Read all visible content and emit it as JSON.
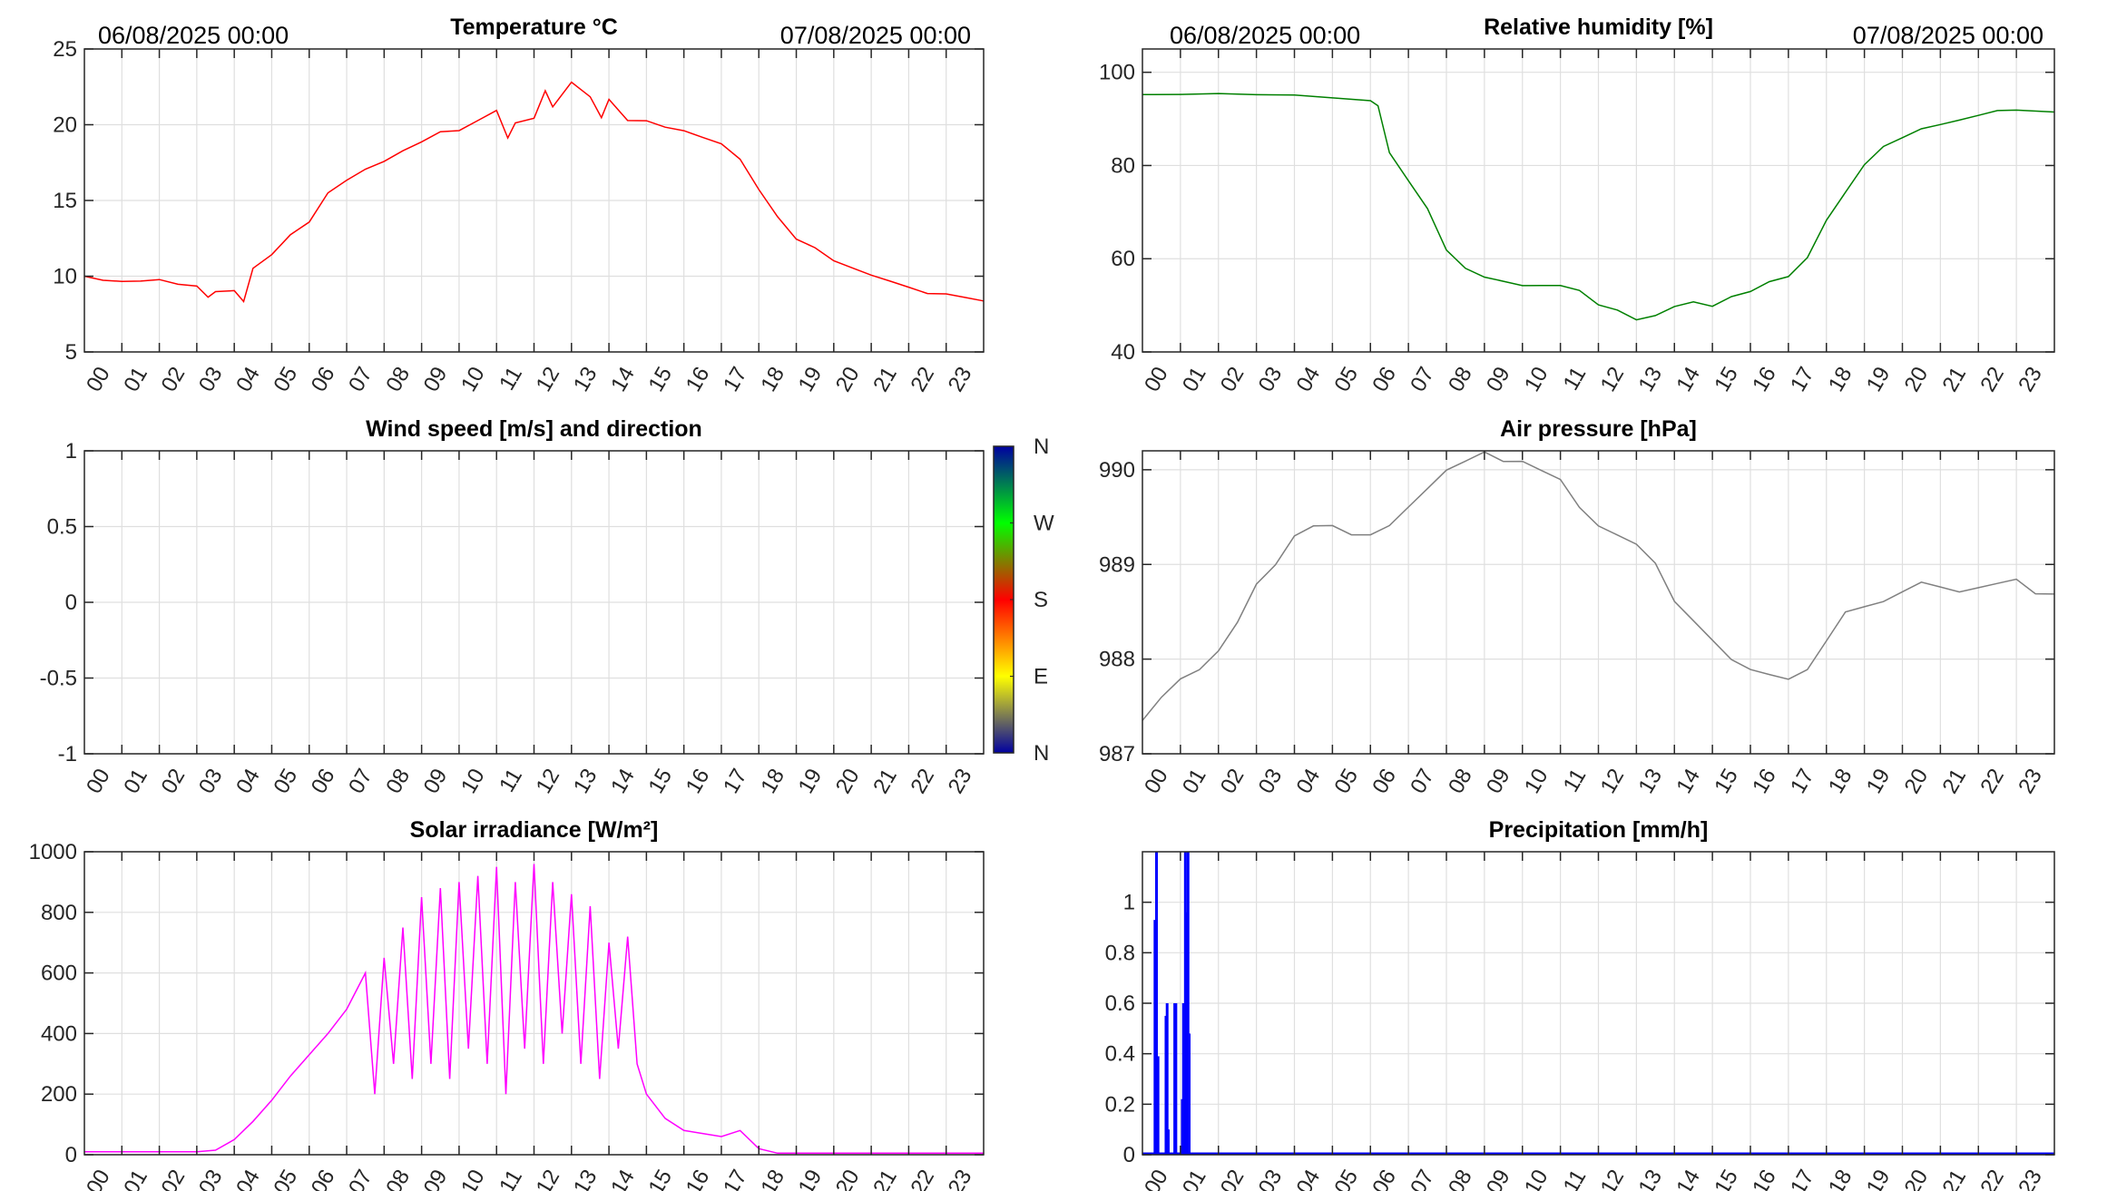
{
  "header": {
    "start_date": "06/08/2025 00:00",
    "end_date": "07/08/2025 00:00"
  },
  "hour_labels": [
    "00",
    "01",
    "02",
    "03",
    "04",
    "05",
    "06",
    "07",
    "08",
    "09",
    "10",
    "11",
    "12",
    "13",
    "14",
    "15",
    "16",
    "17",
    "18",
    "19",
    "20",
    "21",
    "22",
    "23"
  ],
  "chart_data": [
    {
      "id": "temperature",
      "type": "line",
      "title": "Temperature °C",
      "color": "#ff0000",
      "xlim": [
        0,
        24
      ],
      "ylim": [
        5,
        25
      ],
      "yticks": [
        5,
        10,
        15,
        20,
        25
      ],
      "grid": true,
      "x": [
        0,
        0.5,
        1,
        1.5,
        2,
        2.5,
        3,
        3.3,
        3.5,
        4,
        4.25,
        4.5,
        5,
        5.5,
        6,
        6.5,
        7,
        7.5,
        8,
        8.5,
        9,
        9.5,
        10,
        10.5,
        11,
        11.3,
        11.5,
        12,
        12.3,
        12.5,
        13,
        13.5,
        13.8,
        14,
        14.5,
        15,
        15.5,
        16,
        16.5,
        17,
        17.5,
        18,
        18.5,
        19,
        19.5,
        20,
        20.5,
        21,
        21.5,
        22,
        22.5,
        23,
        23.5,
        24
      ],
      "y": [
        10,
        9.7,
        9.6,
        9.6,
        9.7,
        9.4,
        9.3,
        8.6,
        9.0,
        9.1,
        8.4,
        10.6,
        11.5,
        12.8,
        13.6,
        15.5,
        16.3,
        17.0,
        17.5,
        18.2,
        18.8,
        19.5,
        19.6,
        20.3,
        21.0,
        19.2,
        20.2,
        20.5,
        22.3,
        21.2,
        22.8,
        21.8,
        20.4,
        21.6,
        20.2,
        20.2,
        19.8,
        19.6,
        19.2,
        18.8,
        17.8,
        15.8,
        14.0,
        12.5,
        11.9,
        11.0,
        10.5,
        10.0,
        9.6,
        9.2,
        8.8,
        8.8,
        8.6,
        8.4
      ]
    },
    {
      "id": "humidity",
      "type": "line",
      "title": "Relative humidity [%]",
      "color": "#008000",
      "xlim": [
        0,
        24
      ],
      "ylim": [
        40,
        105
      ],
      "yticks": [
        40,
        60,
        80,
        100
      ],
      "grid": true,
      "x": [
        0,
        1,
        2,
        3,
        4,
        5,
        6,
        6.2,
        6.5,
        7,
        7.5,
        8,
        8.5,
        9,
        9.5,
        10,
        10.5,
        11,
        11.5,
        12,
        12.5,
        13,
        13.5,
        14,
        14.5,
        15,
        15.5,
        16,
        16.5,
        17,
        17.5,
        18,
        18.5,
        19,
        19.5,
        20,
        20.5,
        21,
        21.5,
        22,
        22.5,
        23,
        24
      ],
      "y": [
        95,
        95,
        95.2,
        95,
        95,
        94.5,
        94,
        93,
        83,
        77,
        71,
        62,
        58,
        56,
        55,
        54,
        54,
        54,
        53,
        50,
        49,
        47,
        48,
        50,
        51,
        50,
        52,
        53,
        55,
        56,
        60,
        68,
        74,
        80,
        84,
        86,
        88,
        89,
        90,
        91,
        92,
        92,
        91.5
      ]
    },
    {
      "id": "wind",
      "type": "line",
      "title": "Wind speed [m/s] and direction",
      "xlim": [
        0,
        24
      ],
      "ylim": [
        -1,
        1
      ],
      "yticks": [
        -1,
        -0.5,
        0,
        0.5,
        1
      ],
      "grid": true,
      "x": [],
      "y": [],
      "colorbar": {
        "labels": [
          "N",
          "E",
          "S",
          "W",
          "N"
        ],
        "colors": [
          "#0000a0",
          "#ffff00",
          "#ff0000",
          "#00ff00",
          "#0000a0"
        ]
      }
    },
    {
      "id": "pressure",
      "type": "line",
      "title": "Air pressure [hPa]",
      "color": "#808080",
      "xlim": [
        0,
        24
      ],
      "ylim": [
        987,
        990.2
      ],
      "yticks": [
        987,
        988,
        989,
        990
      ],
      "grid": true,
      "x": [
        0,
        0.5,
        1,
        1.5,
        2,
        2.5,
        3,
        3.5,
        4,
        4.5,
        5,
        5.5,
        6,
        6.5,
        7,
        7.5,
        8,
        8.5,
        9,
        9.5,
        10,
        10.5,
        11,
        11.5,
        12,
        12.5,
        13,
        13.5,
        14,
        14.5,
        15,
        15.5,
        16,
        16.5,
        17,
        17.5,
        18,
        18.5,
        19,
        19.5,
        20,
        20.5,
        21,
        21.5,
        22,
        22.5,
        23,
        23.5,
        24
      ],
      "y": [
        987.35,
        987.6,
        987.8,
        987.9,
        988.1,
        988.4,
        988.8,
        989.0,
        989.3,
        989.4,
        989.4,
        989.3,
        989.3,
        989.4,
        989.6,
        989.8,
        990.0,
        990.1,
        990.2,
        990.1,
        990.1,
        990.0,
        989.9,
        989.6,
        989.4,
        989.3,
        989.2,
        989.0,
        988.6,
        988.4,
        988.2,
        988.0,
        987.9,
        987.85,
        987.8,
        987.9,
        988.2,
        988.5,
        988.55,
        988.6,
        988.7,
        988.8,
        988.75,
        988.7,
        988.75,
        988.8,
        988.85,
        988.7,
        988.7
      ]
    },
    {
      "id": "solar",
      "type": "line",
      "title": "Solar irradiance [W/m²]",
      "color": "#ff00ff",
      "xlim": [
        0,
        24
      ],
      "ylim": [
        0,
        1000
      ],
      "yticks": [
        0,
        200,
        400,
        600,
        800,
        1000
      ],
      "grid": true,
      "x": [
        0,
        1,
        2,
        3,
        3.5,
        4,
        4.5,
        5,
        5.5,
        6,
        6.5,
        7,
        7.5,
        7.75,
        8,
        8.25,
        8.5,
        8.75,
        9,
        9.25,
        9.5,
        9.75,
        10,
        10.25,
        10.5,
        10.75,
        11,
        11.25,
        11.5,
        11.75,
        12,
        12.25,
        12.5,
        12.75,
        13,
        13.25,
        13.5,
        13.75,
        14,
        14.25,
        14.5,
        14.75,
        15,
        15.5,
        16,
        16.5,
        17,
        17.5,
        18,
        18.5,
        19,
        20,
        21,
        22,
        23,
        24
      ],
      "y": [
        10,
        10,
        10,
        10,
        15,
        50,
        110,
        180,
        260,
        330,
        400,
        480,
        600,
        200,
        650,
        300,
        750,
        250,
        850,
        300,
        880,
        250,
        900,
        350,
        920,
        300,
        950,
        200,
        900,
        350,
        960,
        300,
        900,
        400,
        860,
        300,
        820,
        250,
        700,
        350,
        720,
        300,
        200,
        120,
        80,
        70,
        60,
        80,
        20,
        5,
        5,
        5,
        5,
        5,
        5,
        5
      ]
    },
    {
      "id": "precipitation",
      "type": "bar",
      "title": "Precipitation [mm/h]",
      "color": "#0000ff",
      "xlim": [
        0,
        24
      ],
      "ylim": [
        0,
        1.2
      ],
      "yticks": [
        0,
        0.2,
        0.4,
        0.6,
        0.8,
        1
      ],
      "grid": true,
      "x": [
        0.33,
        0.37,
        0.41,
        0.62,
        0.65,
        0.68,
        0.85,
        0.88,
        1.05,
        1.08,
        1.11,
        1.13,
        1.15,
        1.17,
        1.2,
        1.23
      ],
      "y": [
        0.93,
        1.2,
        0.39,
        0.55,
        0.6,
        0.1,
        0.6,
        0.6,
        0.22,
        0.6,
        0.45,
        1.2,
        0.96,
        0.84,
        1.2,
        0.48
      ]
    }
  ]
}
